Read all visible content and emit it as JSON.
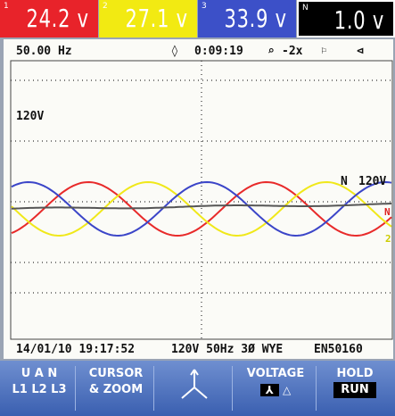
{
  "readings": [
    {
      "channel": "1",
      "value": "24.2 v"
    },
    {
      "channel": "2",
      "value": "27.1 v"
    },
    {
      "channel": "3",
      "value": "33.9 v"
    },
    {
      "channel": "N",
      "value": "1.0 v"
    }
  ],
  "status": {
    "frequency": "50.00 Hz",
    "time": "0:09:19",
    "zoom": "-2x"
  },
  "scope": {
    "scale": "120V",
    "neutral_label": "N",
    "neutral_scale": "120V",
    "right_label_1": "N",
    "right_label_2": "2"
  },
  "footer": {
    "datetime": "14/01/10 19:17:52",
    "config": "120V 50Hz 3Ø WYE",
    "standard": "EN50160"
  },
  "softkeys": [
    {
      "line1": "U A N",
      "line2": "L1 L2 L3"
    },
    {
      "line1": "CURSOR",
      "line2": "& ZOOM"
    },
    {
      "line1": "VOLTAGE"
    },
    {
      "line1": "HOLD",
      "line2": "RUN"
    }
  ]
}
